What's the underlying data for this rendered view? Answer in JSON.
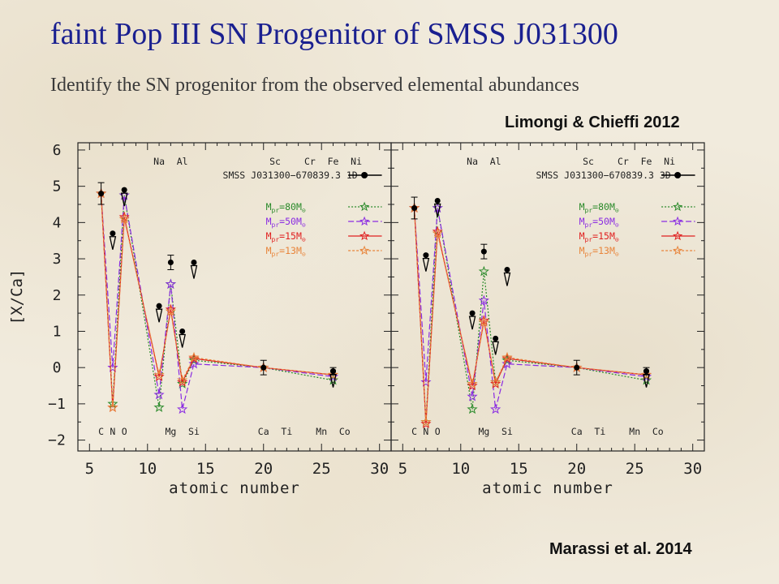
{
  "slide": {
    "title": "faint Pop III SN Progenitor of SMSS J031300",
    "subtitle": "Identify the SN progenitor from the observed elemental abundances",
    "credit_top": "Limongi & Chieffi 2012",
    "credit_bottom": "Marassi et al. 2014"
  },
  "colors": {
    "title": "#1a2090",
    "m80": "#2a8a2a",
    "m50": "#8a2be2",
    "m15": "#e02020",
    "m13": "#e8843a",
    "observed": "#000000"
  },
  "chart_data": [
    {
      "type": "line",
      "panel_label": "SMSS J031300−670839.3 1D",
      "xlabel": "atomic number",
      "ylabel": "[X/Ca]",
      "xlim": [
        4,
        31
      ],
      "ylim": [
        -2.3,
        6.2
      ],
      "x_ticks": [
        5,
        10,
        15,
        20,
        25,
        30
      ],
      "y_ticks": [
        -2,
        -1,
        0,
        1,
        2,
        3,
        4,
        5,
        6
      ],
      "y_tick_labels": [
        "−2",
        "−1",
        "0",
        "1",
        "2",
        "3",
        "4",
        "5",
        "6"
      ],
      "top_elements": [
        {
          "label": "Na",
          "z": 11
        },
        {
          "label": "Al",
          "z": 13
        },
        {
          "label": "Sc",
          "z": 21
        },
        {
          "label": "Cr",
          "z": 24
        },
        {
          "label": "Fe",
          "z": 26
        },
        {
          "label": "Ni",
          "z": 28
        }
      ],
      "bottom_elements": [
        {
          "label": "C",
          "z": 6
        },
        {
          "label": "N",
          "z": 7
        },
        {
          "label": "O",
          "z": 8
        },
        {
          "label": "Mg",
          "z": 12
        },
        {
          "label": "Si",
          "z": 14
        },
        {
          "label": "Ca",
          "z": 20
        },
        {
          "label": "Ti",
          "z": 22
        },
        {
          "label": "Mn",
          "z": 25
        },
        {
          "label": "Co",
          "z": 27
        }
      ],
      "x": [
        6,
        7,
        8,
        11,
        12,
        13,
        14,
        20,
        26
      ],
      "series": [
        {
          "name": "M_pr=80M_⊙",
          "values": [
            4.8,
            -1.0,
            4.75,
            -1.1,
            2.3,
            -0.45,
            0.2,
            0.0,
            -0.35
          ],
          "color": "#2a8a2a",
          "dash": "2,2"
        },
        {
          "name": "M_pr=50M_⊙",
          "values": [
            4.8,
            0.0,
            4.75,
            -0.75,
            2.3,
            -1.15,
            0.1,
            0.0,
            -0.25
          ],
          "color": "#8a2be2",
          "dash": "7,3"
        },
        {
          "name": "M_pr=15M_⊙",
          "values": [
            4.8,
            -1.1,
            4.15,
            -0.25,
            1.6,
            -0.4,
            0.25,
            0.0,
            -0.2
          ],
          "color": "#e02020",
          "dash": ""
        },
        {
          "name": "M_pr=13M_⊙",
          "values": [
            4.8,
            -1.1,
            4.1,
            -0.2,
            1.55,
            -0.35,
            0.28,
            0.0,
            -0.2
          ],
          "color": "#e8843a",
          "dash": "3,2"
        }
      ],
      "observed": {
        "points": [
          {
            "z": 6,
            "value": 4.8,
            "err": 0.3
          },
          {
            "z": 12,
            "value": 2.9,
            "err": 0.2
          },
          {
            "z": 20,
            "value": 0.0,
            "err": 0.2
          },
          {
            "z": 26,
            "value": -0.1,
            "err": 0.1
          }
        ],
        "upper_limits": [
          {
            "z": 7,
            "value": 3.7
          },
          {
            "z": 8,
            "value": 4.9
          },
          {
            "z": 11,
            "value": 1.7
          },
          {
            "z": 13,
            "value": 1.0
          },
          {
            "z": 14,
            "value": 2.9
          },
          {
            "z": 26,
            "value": -0.1
          }
        ]
      },
      "legend": "top-right"
    },
    {
      "type": "line",
      "panel_label": "SMSS J031300−670839.3 3D",
      "xlabel": "atomic number",
      "ylabel": "",
      "xlim": [
        4,
        31
      ],
      "ylim": [
        -2.3,
        6.2
      ],
      "x_ticks": [
        5,
        10,
        15,
        20,
        25,
        30
      ],
      "y_ticks": [],
      "y_tick_labels": [],
      "top_elements": [
        {
          "label": "Na",
          "z": 11
        },
        {
          "label": "Al",
          "z": 13
        },
        {
          "label": "Sc",
          "z": 21
        },
        {
          "label": "Cr",
          "z": 24
        },
        {
          "label": "Fe",
          "z": 26
        },
        {
          "label": "Ni",
          "z": 28
        }
      ],
      "bottom_elements": [
        {
          "label": "C",
          "z": 6
        },
        {
          "label": "N",
          "z": 7
        },
        {
          "label": "O",
          "z": 8
        },
        {
          "label": "Mg",
          "z": 12
        },
        {
          "label": "Si",
          "z": 14
        },
        {
          "label": "Ca",
          "z": 20
        },
        {
          "label": "Ti",
          "z": 22
        },
        {
          "label": "Mn",
          "z": 25
        },
        {
          "label": "Co",
          "z": 27
        }
      ],
      "x": [
        6,
        7,
        8,
        11,
        12,
        13,
        14,
        20,
        26
      ],
      "series": [
        {
          "name": "M_pr=80M_⊙",
          "values": [
            4.4,
            -1.5,
            4.4,
            -1.15,
            2.65,
            -0.4,
            0.2,
            0.0,
            -0.35
          ],
          "color": "#2a8a2a",
          "dash": "2,2"
        },
        {
          "name": "M_pr=50M_⊙",
          "values": [
            4.4,
            -0.4,
            4.4,
            -0.8,
            1.85,
            -1.15,
            0.1,
            0.0,
            -0.25
          ],
          "color": "#8a2be2",
          "dash": "7,3"
        },
        {
          "name": "M_pr=15M_⊙",
          "values": [
            4.4,
            -1.55,
            3.75,
            -0.5,
            1.3,
            -0.45,
            0.25,
            0.0,
            -0.2
          ],
          "color": "#e02020",
          "dash": ""
        },
        {
          "name": "M_pr=13M_⊙",
          "values": [
            4.4,
            -1.5,
            3.7,
            -0.45,
            1.25,
            -0.4,
            0.28,
            0.0,
            -0.2
          ],
          "color": "#e8843a",
          "dash": "3,2"
        }
      ],
      "observed": {
        "points": [
          {
            "z": 6,
            "value": 4.4,
            "err": 0.3
          },
          {
            "z": 12,
            "value": 3.2,
            "err": 0.2
          },
          {
            "z": 20,
            "value": 0.0,
            "err": 0.2
          },
          {
            "z": 26,
            "value": -0.1,
            "err": 0.1
          }
        ],
        "upper_limits": [
          {
            "z": 7,
            "value": 3.1
          },
          {
            "z": 8,
            "value": 4.6
          },
          {
            "z": 11,
            "value": 1.5
          },
          {
            "z": 13,
            "value": 0.8
          },
          {
            "z": 14,
            "value": 2.7
          },
          {
            "z": 26,
            "value": -0.1
          }
        ]
      },
      "legend": "top-right"
    }
  ]
}
